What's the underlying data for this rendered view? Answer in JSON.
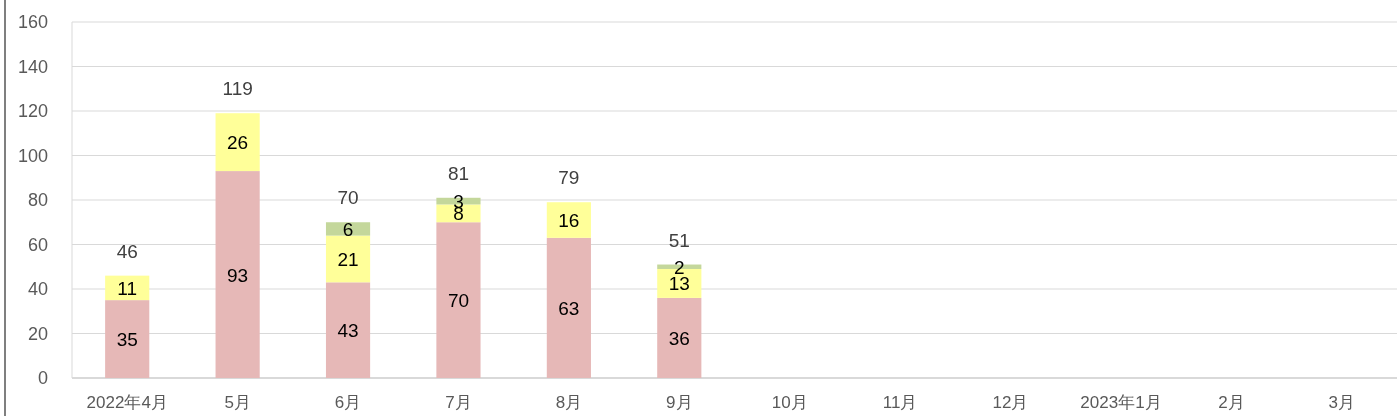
{
  "chart_data": {
    "type": "bar",
    "stacked": true,
    "categories": [
      "2022年4月",
      "5月",
      "6月",
      "7月",
      "8月",
      "9月",
      "10月",
      "11月",
      "12月",
      "2023年1月",
      "2月",
      "3月"
    ],
    "series": [
      {
        "color": "#e6b8b7",
        "values": [
          35,
          93,
          43,
          70,
          63,
          36,
          null,
          null,
          null,
          null,
          null,
          null
        ]
      },
      {
        "color": "#ffff99",
        "values": [
          11,
          26,
          21,
          8,
          16,
          13,
          null,
          null,
          null,
          null,
          null,
          null
        ]
      },
      {
        "color": "#c4d79b",
        "values": [
          null,
          null,
          6,
          3,
          null,
          2,
          null,
          null,
          null,
          null,
          null,
          null
        ]
      }
    ],
    "totals": [
      "46",
      "119",
      "70",
      "81",
      "79",
      "51",
      null,
      null,
      null,
      null,
      null,
      null
    ],
    "data_labels": true,
    "ylim": [
      0,
      160
    ],
    "yticks": [
      0,
      20,
      40,
      60,
      80,
      100,
      120,
      140,
      160
    ],
    "grid": "y"
  }
}
